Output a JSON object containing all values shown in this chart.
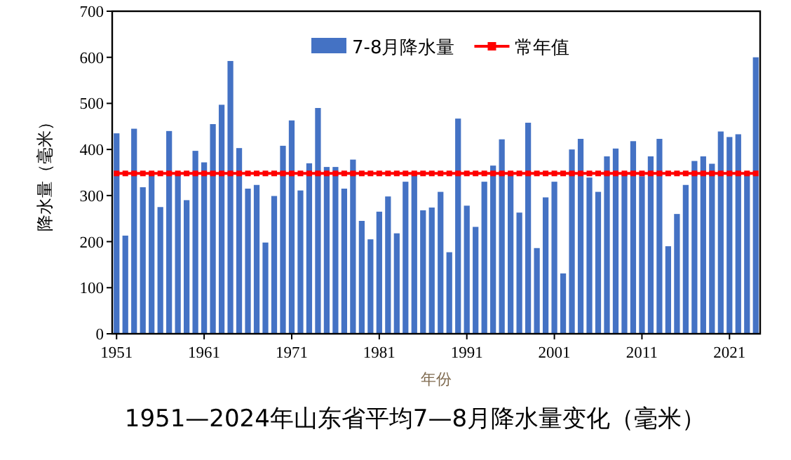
{
  "chart_data": {
    "type": "bar",
    "title": "1951—2024年山东省平均7—8月降水量变化（毫米）",
    "xlabel": "年份",
    "ylabel": "降水量（毫米）",
    "categories": [
      "1951",
      null,
      null,
      null,
      null,
      null,
      null,
      null,
      null,
      null,
      "1961",
      null,
      null,
      null,
      null,
      null,
      null,
      null,
      null,
      null,
      "1971",
      null,
      null,
      null,
      null,
      null,
      null,
      null,
      null,
      null,
      "1981",
      null,
      null,
      null,
      null,
      null,
      null,
      null,
      null,
      null,
      "1991",
      null,
      null,
      null,
      null,
      null,
      null,
      null,
      null,
      null,
      "2001",
      null,
      null,
      null,
      null,
      null,
      null,
      null,
      null,
      null,
      "2011",
      null,
      null,
      null,
      null,
      null,
      null,
      null,
      null,
      null,
      "2021",
      null,
      null,
      null
    ],
    "series": [
      {
        "name": "7-8月降水量",
        "color": "#4472c4",
        "values": [
          435,
          213,
          445,
          318,
          345,
          275,
          440,
          350,
          290,
          397,
          372,
          455,
          497,
          592,
          403,
          315,
          323,
          198,
          299,
          408,
          463,
          311,
          370,
          490,
          362,
          362,
          315,
          378,
          245,
          205,
          265,
          298,
          218,
          330,
          345,
          268,
          274,
          308,
          177,
          467,
          278,
          232,
          330,
          365,
          422,
          350,
          263,
          458,
          186,
          296,
          330,
          131,
          400,
          423,
          339,
          308,
          385,
          402,
          350,
          418,
          342,
          385,
          423,
          190,
          260,
          323,
          375,
          385,
          369,
          439,
          427,
          433,
          345,
          600
        ]
      },
      {
        "name": "常年值",
        "type": "line",
        "color": "#ff0000",
        "values": [
          348,
          348,
          348,
          348,
          348,
          348,
          348,
          348,
          348,
          348,
          348,
          348,
          348,
          348,
          348,
          348,
          348,
          348,
          348,
          348,
          348,
          348,
          348,
          348,
          348,
          348,
          348,
          348,
          348,
          348,
          348,
          348,
          348,
          348,
          348,
          348,
          348,
          348,
          348,
          348,
          348,
          348,
          348,
          348,
          348,
          348,
          348,
          348,
          348,
          348,
          348,
          348,
          348,
          348,
          348,
          348,
          348,
          348,
          348,
          348,
          348,
          348,
          348,
          348,
          348,
          348,
          348,
          348,
          348,
          348,
          348,
          348,
          348,
          348
        ]
      }
    ],
    "marker": "square",
    "ylim": [
      0,
      700
    ],
    "yticks": [
      0,
      100,
      200,
      300,
      400,
      500,
      600,
      700
    ],
    "legend": "top",
    "grid": false
  }
}
